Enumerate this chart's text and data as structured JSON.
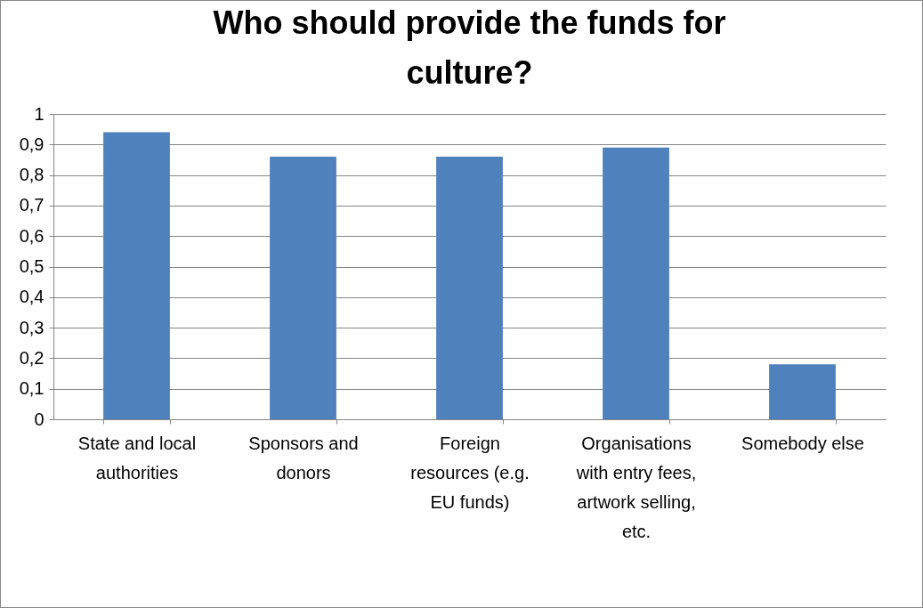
{
  "chart_data": {
    "type": "bar",
    "title": "Who should provide the funds for culture?",
    "categories": [
      "State and local authorities",
      "Sponsors and donors",
      "Foreign resources (e.g. EU funds)",
      "Organisations with entry fees, artwork selling, etc.",
      "Somebody else"
    ],
    "values": [
      0.94,
      0.86,
      0.86,
      0.89,
      0.18
    ],
    "color": "#4f81bd",
    "ylim": [
      0,
      1
    ],
    "yticks": [
      0,
      {
        "value": 0.1,
        "label": "0,1"
      },
      {
        "value": 0.2,
        "label": "0,2"
      },
      {
        "value": 0.3,
        "label": "0,3"
      },
      {
        "value": 0.4,
        "label": "0,4"
      },
      {
        "value": 0.5,
        "label": "0,5"
      },
      {
        "value": 0.6,
        "label": "0,6"
      },
      {
        "value": 0.7,
        "label": "0,7"
      },
      {
        "value": 0.8,
        "label": "0,8"
      },
      {
        "value": 0.9,
        "label": "0,9"
      },
      1
    ],
    "grid": "y"
  }
}
